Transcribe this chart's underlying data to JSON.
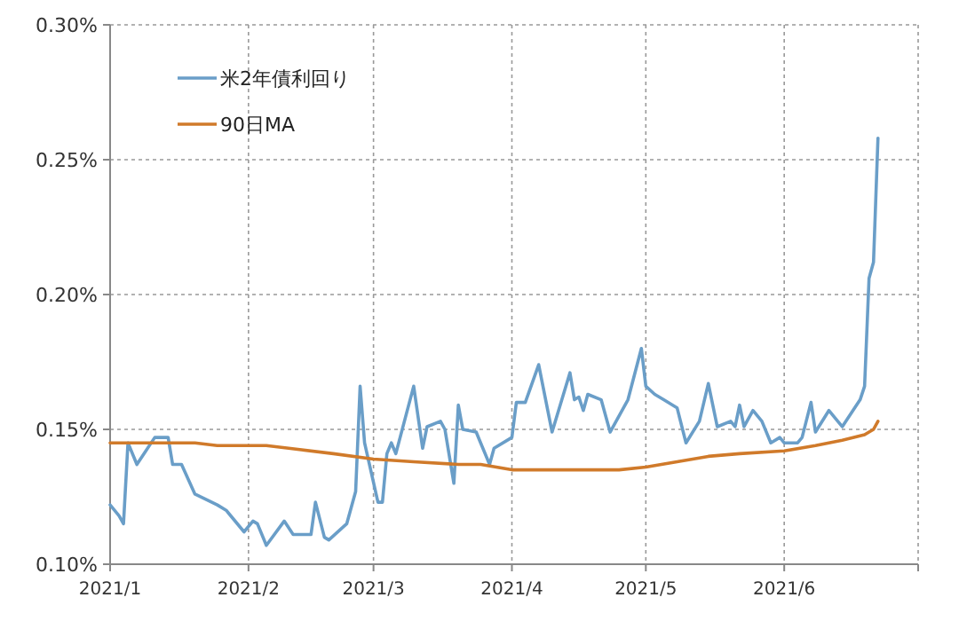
{
  "chart_data": {
    "type": "line",
    "x": [
      "2021-01-01",
      "2021-01-03",
      "2021-01-04",
      "2021-01-05",
      "2021-01-07",
      "2021-01-11",
      "2021-01-14",
      "2021-01-15",
      "2021-01-17",
      "2021-01-20",
      "2021-01-25",
      "2021-01-27",
      "2021-01-31",
      "2021-02-02",
      "2021-02-03",
      "2021-02-05",
      "2021-02-09",
      "2021-02-11",
      "2021-02-15",
      "2021-02-16",
      "2021-02-18",
      "2021-02-19",
      "2021-02-23",
      "2021-02-25",
      "2021-02-26",
      "2021-02-27",
      "2021-03-02",
      "2021-03-03",
      "2021-03-04",
      "2021-03-05",
      "2021-03-06",
      "2021-03-10",
      "2021-03-12",
      "2021-03-13",
      "2021-03-16",
      "2021-03-17",
      "2021-03-19",
      "2021-03-20",
      "2021-03-21",
      "2021-03-24",
      "2021-03-25",
      "2021-03-27",
      "2021-03-28",
      "2021-04-01",
      "2021-04-02",
      "2021-04-04",
      "2021-04-07",
      "2021-04-10",
      "2021-04-14",
      "2021-04-15",
      "2021-04-16",
      "2021-04-17",
      "2021-04-18",
      "2021-04-21",
      "2021-04-23",
      "2021-04-27",
      "2021-04-30",
      "2021-05-01",
      "2021-05-03",
      "2021-05-05",
      "2021-05-08",
      "2021-05-10",
      "2021-05-13",
      "2021-05-15",
      "2021-05-17",
      "2021-05-20",
      "2021-05-21",
      "2021-05-22",
      "2021-05-23",
      "2021-05-25",
      "2021-05-27",
      "2021-05-29",
      "2021-05-31",
      "2021-06-01",
      "2021-06-04",
      "2021-06-05",
      "2021-06-07",
      "2021-06-08",
      "2021-06-11",
      "2021-06-13",
      "2021-06-14",
      "2021-06-16",
      "2021-06-18",
      "2021-06-19",
      "2021-06-20",
      "2021-06-21",
      "2021-06-22"
    ],
    "series": [
      {
        "name": "米2年債利回り",
        "color": "#6a9ec8",
        "values": [
          0.122,
          0.118,
          0.115,
          0.145,
          0.137,
          0.147,
          0.147,
          0.137,
          0.137,
          0.126,
          0.122,
          0.12,
          0.112,
          0.116,
          0.115,
          0.107,
          0.116,
          0.111,
          0.111,
          0.123,
          0.11,
          0.109,
          0.115,
          0.127,
          0.166,
          0.145,
          0.123,
          0.123,
          0.141,
          0.145,
          0.141,
          0.166,
          0.143,
          0.151,
          0.153,
          0.15,
          0.13,
          0.159,
          0.15,
          0.149,
          0.145,
          0.137,
          0.143,
          0.147,
          0.16,
          0.16,
          0.174,
          0.149,
          0.171,
          0.161,
          0.162,
          0.157,
          0.163,
          0.161,
          0.149,
          0.161,
          0.18,
          0.166,
          0.163,
          0.161,
          0.158,
          0.145,
          0.153,
          0.167,
          0.151,
          0.153,
          0.151,
          0.159,
          0.151,
          0.157,
          0.153,
          0.145,
          0.147,
          0.145,
          0.145,
          0.147,
          0.16,
          0.149,
          0.157,
          0.153,
          0.151,
          0.156,
          0.161,
          0.166,
          0.206,
          0.212,
          0.258
        ]
      },
      {
        "name": "90日MA",
        "color": "#d07a2a",
        "x": [
          "2021-01-01",
          "2021-01-20",
          "2021-01-25",
          "2021-02-05",
          "2021-02-10",
          "2021-02-20",
          "2021-03-01",
          "2021-03-10",
          "2021-03-20",
          "2021-03-25",
          "2021-04-01",
          "2021-04-20",
          "2021-04-25",
          "2021-05-01",
          "2021-05-08",
          "2021-05-15",
          "2021-05-22",
          "2021-06-01",
          "2021-06-08",
          "2021-06-14",
          "2021-06-19",
          "2021-06-21",
          "2021-06-22"
        ],
        "values": [
          0.145,
          0.145,
          0.144,
          0.144,
          0.143,
          0.141,
          0.139,
          0.138,
          0.137,
          0.137,
          0.135,
          0.135,
          0.135,
          0.136,
          0.138,
          0.14,
          0.141,
          0.142,
          0.144,
          0.146,
          0.148,
          0.15,
          0.153
        ]
      }
    ],
    "xlim": [
      "2021-01-01",
      "2021-07-01"
    ],
    "xticks": [
      {
        "value": "2021-01-01",
        "label": "2021/1"
      },
      {
        "value": "2021-02-01",
        "label": "2021/2"
      },
      {
        "value": "2021-03-01",
        "label": "2021/3"
      },
      {
        "value": "2021-04-01",
        "label": "2021/4"
      },
      {
        "value": "2021-05-01",
        "label": "2021/5"
      },
      {
        "value": "2021-06-01",
        "label": "2021/6"
      },
      {
        "value": "2021-07-01",
        "label": null
      }
    ],
    "ylim": [
      0.1,
      0.3
    ],
    "yticks": [
      {
        "value": 0.1,
        "label": "0.10%"
      },
      {
        "value": 0.15,
        "label": "0.15%"
      },
      {
        "value": 0.2,
        "label": "0.20%"
      },
      {
        "value": 0.25,
        "label": "0.25%"
      },
      {
        "value": 0.3,
        "label": "0.30%"
      }
    ],
    "grid": true,
    "legend": "top left",
    "line_style": "solid",
    "marker": "none"
  }
}
